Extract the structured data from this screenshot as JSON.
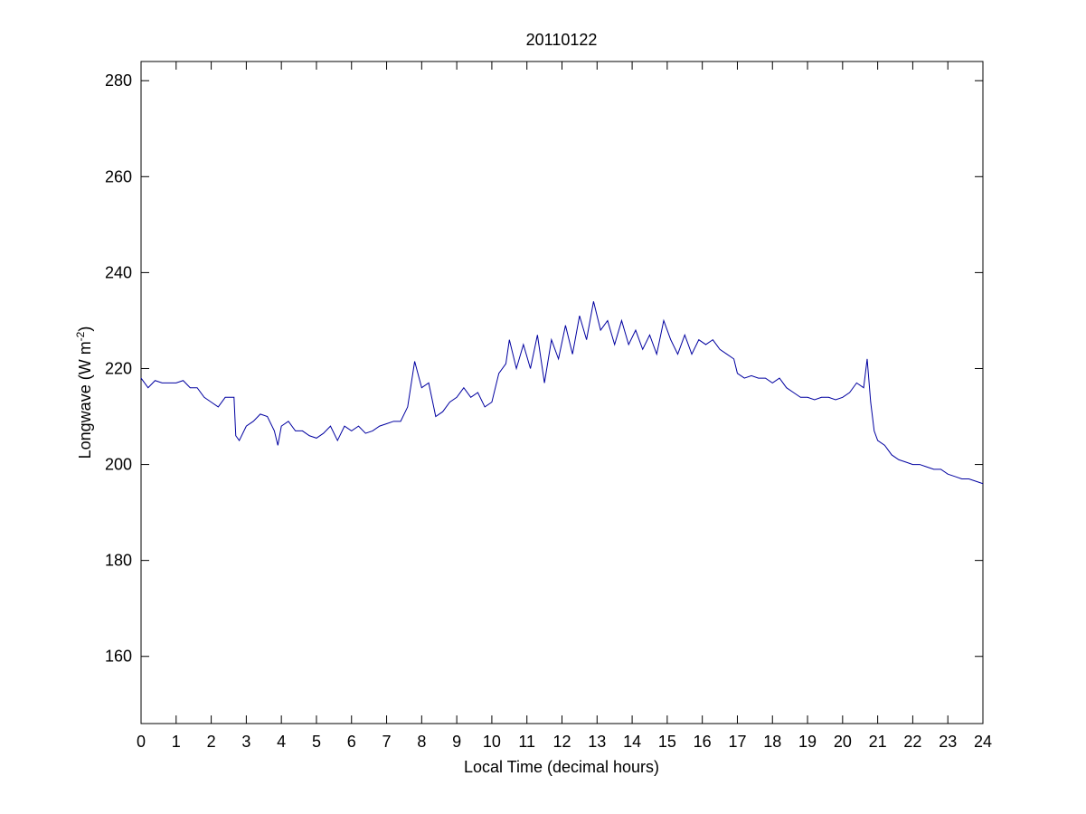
{
  "chart_data": {
    "type": "line",
    "title": "20110122",
    "xlabel": "Local Time (decimal hours)",
    "ylabel": [
      "Longwave (W m",
      "-2",
      ")"
    ],
    "xlim": [
      0,
      24
    ],
    "ylim": [
      146,
      284
    ],
    "xticks": [
      0,
      1,
      2,
      3,
      4,
      5,
      6,
      7,
      8,
      9,
      10,
      11,
      12,
      13,
      14,
      15,
      16,
      17,
      18,
      19,
      20,
      21,
      22,
      23,
      24
    ],
    "yticks": [
      160,
      180,
      200,
      220,
      240,
      260,
      280
    ],
    "grid": false,
    "series": [
      {
        "name": "Longwave",
        "color": "#0000a0",
        "x": [
          0,
          0.2,
          0.4,
          0.6,
          0.8,
          1.0,
          1.2,
          1.4,
          1.6,
          1.8,
          2.0,
          2.2,
          2.4,
          2.6,
          2.65,
          2.7,
          2.8,
          3.0,
          3.2,
          3.4,
          3.6,
          3.8,
          3.9,
          4.0,
          4.2,
          4.4,
          4.6,
          4.8,
          5.0,
          5.2,
          5.4,
          5.6,
          5.8,
          6.0,
          6.2,
          6.4,
          6.6,
          6.8,
          7.0,
          7.2,
          7.4,
          7.6,
          7.8,
          8.0,
          8.2,
          8.4,
          8.6,
          8.8,
          9.0,
          9.2,
          9.4,
          9.6,
          9.8,
          10.0,
          10.2,
          10.4,
          10.5,
          10.7,
          10.9,
          11.1,
          11.3,
          11.5,
          11.7,
          11.9,
          12.1,
          12.3,
          12.5,
          12.7,
          12.9,
          13.1,
          13.3,
          13.5,
          13.7,
          13.9,
          14.1,
          14.3,
          14.5,
          14.7,
          14.9,
          15.1,
          15.3,
          15.5,
          15.7,
          15.9,
          16.1,
          16.3,
          16.5,
          16.7,
          16.9,
          17.0,
          17.2,
          17.4,
          17.6,
          17.8,
          18.0,
          18.2,
          18.4,
          18.6,
          18.8,
          19.0,
          19.2,
          19.4,
          19.6,
          19.8,
          20.0,
          20.2,
          20.4,
          20.6,
          20.7,
          20.8,
          20.9,
          21.0,
          21.2,
          21.4,
          21.6,
          21.8,
          22.0,
          22.2,
          22.4,
          22.6,
          22.8,
          23.0,
          23.2,
          23.4,
          23.6,
          23.8,
          24.0
        ],
        "values": [
          218,
          216,
          217.5,
          217,
          217,
          217,
          217.5,
          216,
          216,
          214,
          213,
          212,
          214,
          214,
          214,
          206,
          205,
          208,
          209,
          210.5,
          210,
          207,
          204,
          208,
          209,
          207,
          207,
          206,
          205.5,
          206.5,
          208,
          205,
          208,
          207,
          208,
          206.5,
          207,
          208,
          208.5,
          209,
          209,
          212,
          221.5,
          216,
          217,
          210,
          211,
          213,
          214,
          216,
          214,
          215,
          212,
          213,
          219,
          221,
          226,
          220,
          225,
          220,
          227,
          217,
          226,
          222,
          229,
          223,
          231,
          226,
          234,
          228,
          230,
          225,
          230,
          225,
          228,
          224,
          227,
          223,
          230,
          226,
          223,
          227,
          223,
          226,
          225,
          226,
          224,
          223,
          222,
          219,
          218,
          218.5,
          218,
          218,
          217,
          218,
          216,
          215,
          214,
          214,
          213.5,
          214,
          214,
          213.5,
          214,
          215,
          217,
          216,
          222,
          213,
          207,
          205,
          204,
          202,
          201,
          200.5,
          200,
          200,
          199.5,
          199,
          199,
          198,
          197.5,
          197,
          197,
          196.5,
          196
        ]
      }
    ]
  }
}
